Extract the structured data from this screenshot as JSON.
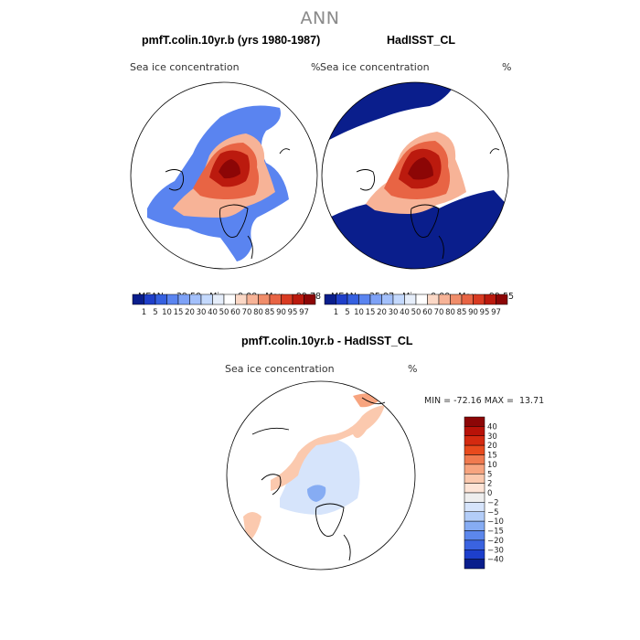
{
  "page_title": "ANN",
  "panels": [
    {
      "title": "pmfT.colin.10yr.b (yrs 1980-1987)",
      "field_label": "Sea ice concentration",
      "units": "%",
      "stats": {
        "mean_label": "MEAN=",
        "mean": "39.50",
        "min_label": "Min=",
        "min": "0.00",
        "max_label": "Max=",
        "max": "99.78"
      }
    },
    {
      "title": "HadISST_CL",
      "field_label": "Sea ice concentration",
      "units": "%",
      "stats": {
        "mean_label": "MEAN=",
        "mean": "35.97",
        "min_label": "Min=",
        "min": "0.00",
        "max_label": "Max=",
        "max": "99.55"
      }
    },
    {
      "title": "pmfT.colin.10yr.b - HadISST_CL",
      "field_label": "Sea ice concentration",
      "units": "%",
      "minmax": "MIN = -72.16 MAX =  13.71"
    }
  ],
  "colorbar_abs": {
    "labels": [
      "1",
      "5",
      "10",
      "15",
      "20",
      "30",
      "40",
      "50",
      "60",
      "70",
      "80",
      "85",
      "90",
      "95",
      "97"
    ],
    "colors": [
      "#0a1e8c",
      "#1f3fc9",
      "#3560e0",
      "#5a84f0",
      "#7ea2f7",
      "#a3c0fb",
      "#c4d9fd",
      "#e6eefa",
      "#ffffff",
      "#fbd8c6",
      "#f7b397",
      "#f08d6a",
      "#e86444",
      "#d93b22",
      "#bb1a0e",
      "#8c0606"
    ]
  },
  "colorbar_diff": {
    "labels": [
      "40",
      "30",
      "20",
      "15",
      "10",
      "5",
      "2",
      "0",
      "−2",
      "−5",
      "−10",
      "−15",
      "−20",
      "−30",
      "−40"
    ],
    "colors": [
      "#8c0606",
      "#b81208",
      "#d42a10",
      "#e84a1d",
      "#f07a4f",
      "#f7a47f",
      "#fbc9ae",
      "#fde4d6",
      "#eeeeee",
      "#d6e4fb",
      "#b3cdf8",
      "#86acf3",
      "#5c87ec",
      "#3a63e0",
      "#1d3fcc",
      "#0a1e8c"
    ]
  },
  "chart_data": [
    {
      "type": "heatmap",
      "title": "pmfT.colin.10yr.b (yrs 1980-1987)",
      "field": "Sea ice concentration",
      "units": "%",
      "projection": "North polar stereographic",
      "mean": 39.5,
      "min": 0.0,
      "max": 99.78,
      "contour_levels": [
        1,
        5,
        10,
        15,
        20,
        30,
        40,
        50,
        60,
        70,
        80,
        85,
        90,
        95,
        97
      ]
    },
    {
      "type": "heatmap",
      "title": "HadISST_CL",
      "field": "Sea ice concentration",
      "units": "%",
      "projection": "North polar stereographic",
      "mean": 35.97,
      "min": 0.0,
      "max": 99.55,
      "contour_levels": [
        1,
        5,
        10,
        15,
        20,
        30,
        40,
        50,
        60,
        70,
        80,
        85,
        90,
        95,
        97
      ]
    },
    {
      "type": "heatmap",
      "title": "pmfT.colin.10yr.b - HadISST_CL",
      "field": "Sea ice concentration",
      "units": "%",
      "projection": "North polar stereographic",
      "min": -72.16,
      "max": 13.71,
      "contour_levels": [
        -40,
        -30,
        -20,
        -15,
        -10,
        -5,
        -2,
        0,
        2,
        5,
        10,
        15,
        20,
        30,
        40
      ]
    }
  ]
}
